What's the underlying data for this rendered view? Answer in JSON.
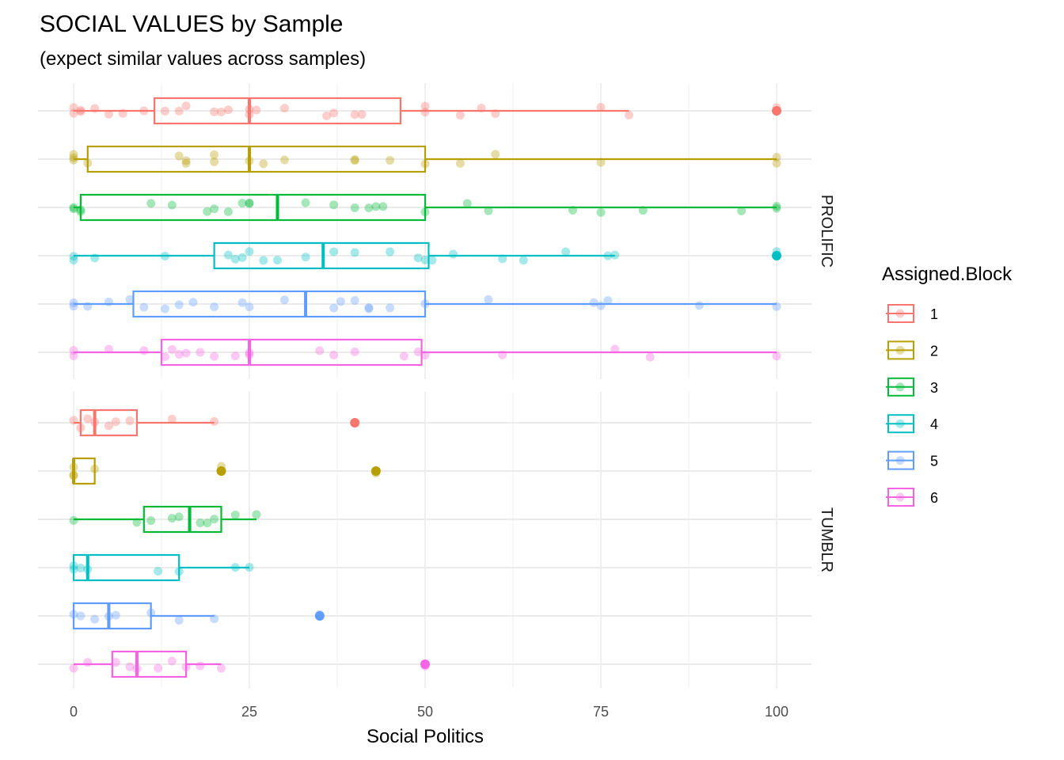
{
  "chart_data": {
    "type": "boxplot",
    "title": "SOCIAL VALUES by Sample",
    "subtitle": "(expect similar values across samples)",
    "xlabel": "Social Politics",
    "ylabel": "",
    "xlim": [
      0,
      100
    ],
    "x_ticks": [
      0,
      25,
      50,
      75,
      100
    ],
    "grid": true,
    "legend_title": "Assigned.Block",
    "legend_position": "right",
    "groups": [
      "1",
      "2",
      "3",
      "4",
      "5",
      "6"
    ],
    "colors": {
      "1": "#F8766D",
      "2": "#B79F00",
      "3": "#00BA38",
      "4": "#00BFC4",
      "5": "#619CFF",
      "6": "#F564E3"
    },
    "facets": [
      {
        "name": "PROLIFIC",
        "series": [
          {
            "group": "1",
            "whisker_low": 0,
            "q1": 11.5,
            "median": 25,
            "q3": 46.5,
            "whisker_high": 79,
            "outliers": [
              100
            ],
            "points": [
              0,
              0,
              1,
              1,
              3,
              5,
              7,
              10,
              13,
              15,
              16,
              20,
              21,
              22,
              25,
              25,
              26,
              30,
              36,
              37,
              40,
              41,
              50,
              50,
              55,
              58,
              60,
              75,
              79,
              100
            ]
          },
          {
            "group": "2",
            "whisker_low": 0,
            "q1": 2,
            "median": 25,
            "q3": 50,
            "whisker_high": 100,
            "outliers": [],
            "points": [
              0,
              0,
              0,
              2,
              15,
              16,
              16,
              20,
              20,
              25,
              27,
              30,
              40,
              40,
              45,
              50,
              55,
              60,
              75,
              100,
              100
            ]
          },
          {
            "group": "3",
            "whisker_low": 0,
            "q1": 1,
            "median": 29,
            "q3": 50,
            "whisker_high": 100,
            "outliers": [],
            "points": [
              0,
              0,
              1,
              1,
              11,
              14,
              19,
              20,
              22,
              24,
              25,
              25,
              33,
              37,
              40,
              42,
              43,
              44,
              50,
              56,
              59,
              71,
              75,
              81,
              95,
              100,
              100
            ]
          },
          {
            "group": "4",
            "whisker_low": 0,
            "q1": 20,
            "median": 35.5,
            "q3": 50.5,
            "whisker_high": 77,
            "outliers": [
              100
            ],
            "points": [
              0,
              0,
              3,
              13,
              22,
              23,
              24,
              25,
              27,
              29,
              33,
              37,
              40,
              45,
              49,
              50,
              51,
              54,
              61,
              64,
              70,
              76,
              77,
              100
            ]
          },
          {
            "group": "5",
            "whisker_low": 0,
            "q1": 8.5,
            "median": 33,
            "q3": 50,
            "whisker_high": 100,
            "outliers": [],
            "points": [
              0,
              0,
              2,
              5,
              8,
              10,
              13,
              15,
              17,
              20,
              24,
              25,
              30,
              37,
              38,
              40,
              42,
              42,
              45,
              50,
              59,
              74,
              75,
              76,
              89,
              100
            ]
          },
          {
            "group": "6",
            "whisker_low": 0,
            "q1": 12.5,
            "median": 25,
            "q3": 49.5,
            "whisker_high": 100,
            "outliers": [],
            "points": [
              0,
              0,
              5,
              10,
              13,
              14,
              15,
              16,
              18,
              20,
              23,
              25,
              25,
              35,
              37,
              40,
              47,
              49,
              50,
              61,
              77,
              82,
              100
            ]
          }
        ]
      },
      {
        "name": "TUMBLR",
        "series": [
          {
            "group": "1",
            "whisker_low": 0,
            "q1": 1,
            "median": 3,
            "q3": 9,
            "whisker_high": 20,
            "outliers": [
              40
            ],
            "points": [
              0,
              1,
              2,
              3,
              5,
              6,
              8,
              14,
              20,
              40
            ]
          },
          {
            "group": "2",
            "whisker_low": 0,
            "q1": 0,
            "median": 0,
            "q3": 3,
            "whisker_high": 3,
            "outliers": [
              21,
              43
            ],
            "points": [
              0,
              0,
              0,
              3,
              21,
              43
            ]
          },
          {
            "group": "3",
            "whisker_low": 0,
            "q1": 10,
            "median": 16.5,
            "q3": 21,
            "whisker_high": 26,
            "outliers": [],
            "points": [
              0,
              9,
              11,
              14,
              15,
              18,
              19,
              20,
              23,
              26
            ]
          },
          {
            "group": "4",
            "whisker_low": 0,
            "q1": 0,
            "median": 2,
            "q3": 15,
            "whisker_high": 25,
            "outliers": [],
            "points": [
              0,
              0,
              1,
              2,
              12,
              15,
              23,
              25
            ]
          },
          {
            "group": "5",
            "whisker_low": 0,
            "q1": 0,
            "median": 5,
            "q3": 11,
            "whisker_high": 20,
            "outliers": [
              35
            ],
            "points": [
              0,
              1,
              3,
              5,
              6,
              11,
              15,
              20,
              35
            ]
          },
          {
            "group": "6",
            "whisker_low": 0,
            "q1": 5.5,
            "median": 9,
            "q3": 16,
            "whisker_high": 21,
            "outliers": [
              50
            ],
            "points": [
              0,
              2,
              6,
              8,
              9,
              12,
              14,
              16,
              18,
              21,
              50
            ]
          }
        ]
      }
    ]
  }
}
